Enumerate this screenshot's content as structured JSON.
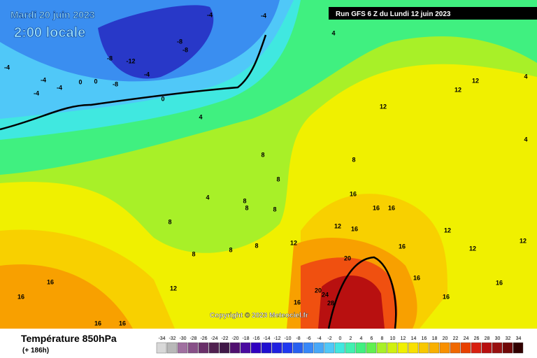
{
  "header": {
    "date": "Mardi 20 juin 2023",
    "time": "2:00 locale",
    "run": "Run GFS 6 Z du Lundi 12 juin 2023"
  },
  "map": {
    "copyright": "Copyright © 2023 Meteociel.fr",
    "contour_labels": [
      -4,
      -4,
      -8,
      -8,
      -8,
      -12,
      -4,
      -8,
      -4,
      -4,
      -4,
      -4,
      0,
      0,
      0,
      4,
      4,
      4,
      8,
      8,
      8,
      8,
      8,
      8,
      8,
      8,
      8,
      8,
      12,
      12,
      12,
      12,
      12,
      12,
      12,
      12,
      12,
      16,
      16,
      16,
      16,
      16,
      16,
      16,
      16,
      16,
      16,
      16,
      16,
      16,
      20,
      20,
      24,
      28,
      4,
      4
    ]
  },
  "legend": {
    "title": "Température 850hPa",
    "lead_time": "(+ 186h)",
    "scale": [
      -34,
      -32,
      -30,
      -28,
      -26,
      -24,
      -22,
      -20,
      -18,
      -16,
      -14,
      -12,
      -10,
      -8,
      -6,
      -4,
      -2,
      0,
      2,
      4,
      6,
      8,
      10,
      12,
      14,
      16,
      18,
      20,
      22,
      24,
      26,
      28,
      30,
      32,
      34
    ]
  }
}
